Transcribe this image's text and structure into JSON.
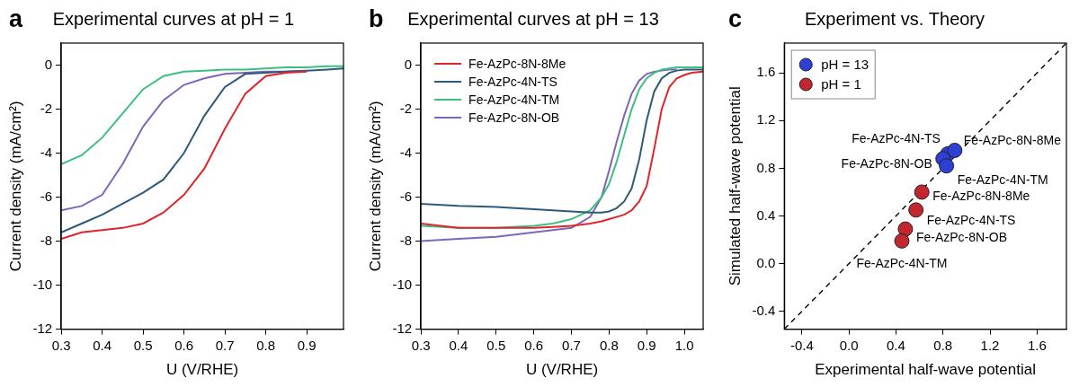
{
  "chart_data": [
    {
      "panel": "a",
      "type": "line",
      "title": "Experimental curves at pH = 1",
      "x_label": "U (V/RHE)",
      "y_label": "Current density (mA/cm²)",
      "x": [
        0.3,
        0.35,
        0.4,
        0.45,
        0.5,
        0.55,
        0.6,
        0.65,
        0.7,
        0.75,
        0.8,
        0.85,
        0.9,
        0.95,
        0.99
      ],
      "series": [
        {
          "color": "#e0242b",
          "values": [
            -7.9,
            -7.6,
            -7.5,
            -7.4,
            -7.2,
            -6.7,
            -5.9,
            -4.7,
            -2.9,
            -1.3,
            -0.5,
            -0.35,
            -0.3,
            null,
            null
          ]
        },
        {
          "color": "#2d5a7b",
          "values": [
            -7.6,
            -7.2,
            -6.8,
            -6.3,
            -5.8,
            -5.2,
            -4.0,
            -2.3,
            -1.0,
            -0.4,
            -0.35,
            -0.3,
            -0.25,
            -0.2,
            -0.15
          ]
        },
        {
          "color": "#3dbf7f",
          "values": [
            -4.5,
            -4.1,
            -3.3,
            -2.2,
            -1.1,
            -0.5,
            -0.3,
            -0.25,
            -0.2,
            -0.2,
            -0.15,
            -0.1,
            -0.1,
            -0.05,
            -0.05
          ]
        },
        {
          "color": "#8066b8",
          "values": [
            -6.6,
            -6.4,
            -5.9,
            -4.5,
            -2.8,
            -1.6,
            -0.9,
            -0.6,
            -0.4,
            -0.35,
            -0.3,
            -0.3,
            -0.25,
            null,
            null
          ]
        }
      ],
      "xlim": [
        0.3,
        0.99
      ],
      "xticks": [
        0.3,
        0.4,
        0.5,
        0.6,
        0.7,
        0.8,
        0.9
      ],
      "ylim": [
        -12,
        1
      ],
      "yticks": [
        -12,
        -10,
        -8,
        -6,
        -4,
        -2,
        0
      ],
      "grid": false
    },
    {
      "panel": "b",
      "type": "line",
      "title": "Experimental curves at pH = 13",
      "x_label": "U (V/RHE)",
      "y_label": "Current density (mA/cm²)",
      "x": [
        0.3,
        0.4,
        0.5,
        0.6,
        0.65,
        0.7,
        0.75,
        0.78,
        0.8,
        0.82,
        0.84,
        0.86,
        0.88,
        0.9,
        0.92,
        0.94,
        0.96,
        0.98,
        1.0,
        1.02,
        1.05
      ],
      "series": [
        {
          "name": "Fe-AzPc-8N-8Me",
          "color": "#e0242b",
          "values": [
            -7.2,
            -7.4,
            -7.4,
            -7.4,
            -7.35,
            -7.3,
            -7.2,
            -7.1,
            -7.0,
            -6.9,
            -6.8,
            -6.6,
            -6.2,
            -5.5,
            -3.8,
            -2.0,
            -1.0,
            -0.6,
            -0.45,
            -0.35,
            -0.3
          ]
        },
        {
          "name": "Fe-AzPc-4N-TS",
          "color": "#2d5a7b",
          "values": [
            -6.3,
            -6.4,
            -6.45,
            -6.55,
            -6.6,
            -6.65,
            -6.7,
            -6.7,
            -6.65,
            -6.5,
            -6.2,
            -5.6,
            -4.3,
            -2.5,
            -1.2,
            -0.6,
            -0.35,
            -0.25,
            -0.2,
            -0.2,
            -0.2
          ]
        },
        {
          "name": "Fe-AzPc-4N-TM",
          "color": "#3dbf7f",
          "values": [
            -7.3,
            -7.4,
            -7.4,
            -7.3,
            -7.2,
            -7.0,
            -6.6,
            -6.0,
            -5.4,
            -4.4,
            -3.2,
            -2.0,
            -1.1,
            -0.6,
            -0.35,
            -0.2,
            -0.15,
            -0.1,
            -0.1,
            -0.1,
            -0.1
          ]
        },
        {
          "name": "Fe-AzPc-8N-OB",
          "color": "#8066b8",
          "values": [
            -8.0,
            -7.9,
            -7.8,
            -7.6,
            -7.5,
            -7.4,
            -6.9,
            -6.0,
            -4.8,
            -3.5,
            -2.3,
            -1.3,
            -0.7,
            -0.4,
            -0.3,
            -0.25,
            -0.2,
            -0.2,
            null,
            null,
            null
          ]
        }
      ],
      "xlim": [
        0.3,
        1.05
      ],
      "xticks": [
        0.3,
        0.4,
        0.5,
        0.6,
        0.7,
        0.8,
        0.9,
        {
          "value": 1,
          "label": "1.0"
        }
      ],
      "ylim": [
        -12,
        1
      ],
      "yticks": [
        -12,
        -10,
        -8,
        -6,
        -4,
        -2,
        0
      ],
      "grid": false,
      "legend": "upper left"
    },
    {
      "panel": "c",
      "type": "scatter",
      "title": "Experiment vs. Theory",
      "x_label": "Experimental half-wave potential",
      "y_label": "Simulated half-wave potential",
      "series": [
        {
          "type": "line",
          "line_style": "dashed",
          "color": "#000000",
          "x": [
            -0.55,
            1.85
          ],
          "values": [
            -0.55,
            1.85
          ]
        },
        {
          "name": "pH = 13",
          "color": "#2e3fd6",
          "marker": "circle",
          "x": [
            0.84,
            0.9,
            0.8,
            0.83
          ],
          "values": [
            0.92,
            0.95,
            0.88,
            0.82
          ],
          "point_labels": [
            "Fe-AzPc-4N-TS",
            "Fe-AzPc-8N-8Me",
            "Fe-AzPc-8N-OB",
            "Fe-AzPc-4N-TM"
          ]
        },
        {
          "name": "pH = 1",
          "color": "#c1272d",
          "marker": "circle",
          "x": [
            0.62,
            0.57,
            0.48,
            0.45
          ],
          "values": [
            0.6,
            0.45,
            0.29,
            0.19
          ],
          "point_labels": [
            "Fe-AzPc-8N-8Me",
            "Fe-AzPc-4N-TS",
            "Fe-AzPc-8N-OB",
            "Fe-AzPc-4N-TM"
          ]
        }
      ],
      "xlim": [
        -0.55,
        1.85
      ],
      "xticks": [
        -0.4,
        {
          "value": 0,
          "label": "0.0"
        },
        0.4,
        0.8,
        1.2,
        1.6
      ],
      "ylim": [
        -0.55,
        1.85
      ],
      "yticks": [
        -0.4,
        {
          "value": 0,
          "label": "0.0"
        },
        0.4,
        0.8,
        1.2,
        1.6
      ],
      "grid": false,
      "legend": "upper left"
    }
  ]
}
